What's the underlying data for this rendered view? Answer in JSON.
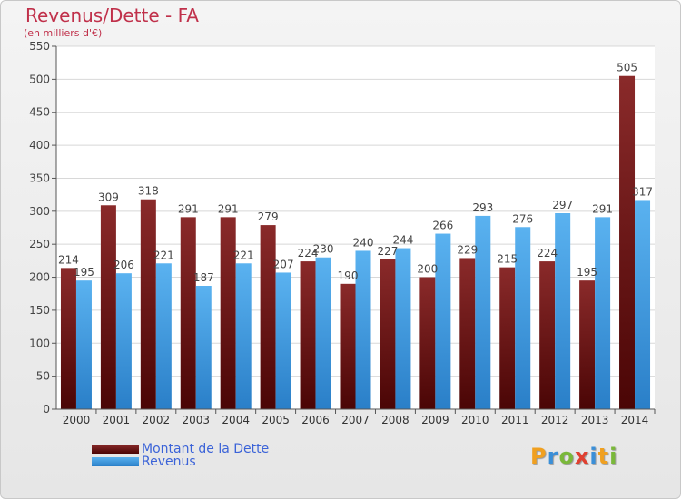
{
  "header": {
    "title": "Revenus/Dette - FA",
    "subtitle": "(en milliers d'€)"
  },
  "legend": {
    "items": [
      {
        "label": "Montant de la Dette",
        "color": "#7a1a1a"
      },
      {
        "label": "Revenus",
        "color": "#4aa3e6"
      }
    ]
  },
  "logo": {
    "text": "Proxiti",
    "letters": [
      {
        "ch": "P",
        "color": "#f0a020"
      },
      {
        "ch": "r",
        "color": "#3a8fd8"
      },
      {
        "ch": "o",
        "color": "#7ab83a"
      },
      {
        "ch": "x",
        "color": "#e04030"
      },
      {
        "ch": "i",
        "color": "#3a8fd8"
      },
      {
        "ch": "t",
        "color": "#f0a020"
      },
      {
        "ch": "i",
        "color": "#7ab83a"
      }
    ]
  },
  "chart_data": {
    "type": "bar",
    "categories": [
      "2000",
      "2001",
      "2002",
      "2003",
      "2004",
      "2005",
      "2006",
      "2007",
      "2008",
      "2009",
      "2010",
      "2011",
      "2012",
      "2013",
      "2014"
    ],
    "series": [
      {
        "name": "Montant de la Dette",
        "color": "#7a1a1a",
        "values": [
          214,
          309,
          318,
          291,
          291,
          279,
          224,
          190,
          227,
          200,
          229,
          215,
          224,
          195,
          505
        ]
      },
      {
        "name": "Revenus",
        "color": "#4aa3e6",
        "values": [
          195,
          206,
          221,
          187,
          221,
          207,
          230,
          240,
          244,
          266,
          293,
          276,
          297,
          291,
          317
        ]
      }
    ],
    "ylim": [
      0,
      550
    ],
    "yticks": [
      0,
      50,
      100,
      150,
      200,
      250,
      300,
      350,
      400,
      450,
      500,
      550
    ],
    "grid": true,
    "legend_position": "bottom-left"
  }
}
